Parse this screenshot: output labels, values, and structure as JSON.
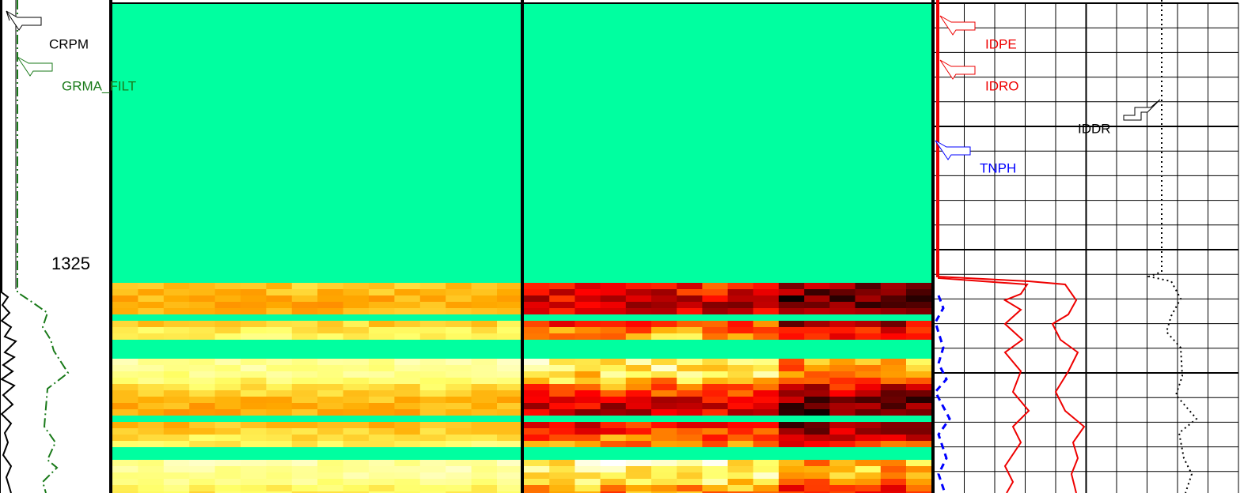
{
  "left_track": {
    "curves": [
      "CRPM",
      "GRMA_FILT"
    ],
    "depth": "1325"
  },
  "right_track": {
    "curves": [
      "IDPE",
      "IDRO",
      "TNPH",
      "IDDR"
    ]
  }
}
